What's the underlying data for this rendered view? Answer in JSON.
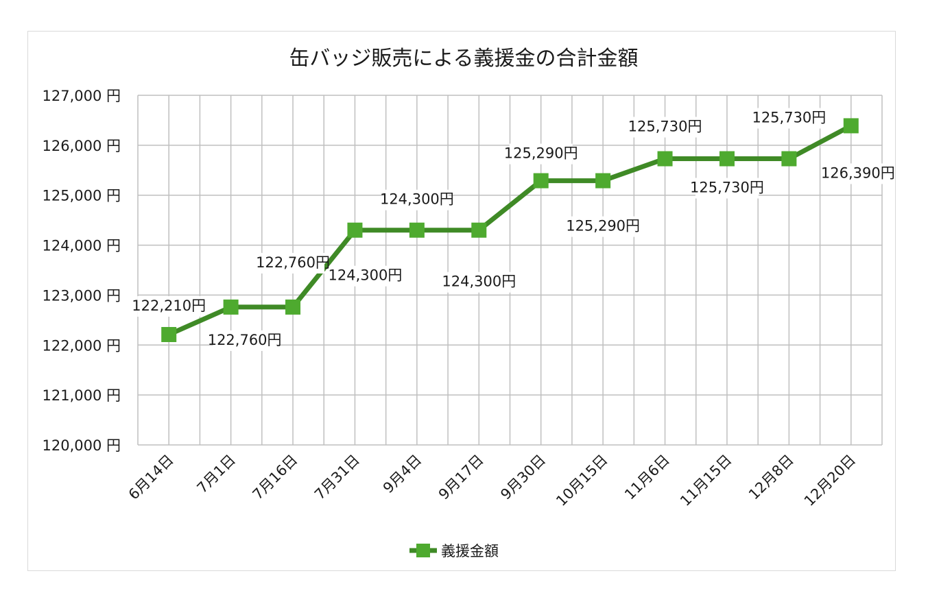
{
  "chart_data": {
    "type": "line",
    "title": "缶バッジ販売による義援金の合計金額",
    "categories": [
      "6月14日",
      "7月1日",
      "7月16日",
      "7月31日",
      "9月4日",
      "9月17日",
      "9月30日",
      "10月15日",
      "11月6日",
      "11月15日",
      "12月8日",
      "12月20日"
    ],
    "series": [
      {
        "name": "義援金額",
        "values": [
          122210,
          122760,
          122760,
          124300,
          124300,
          124300,
          125290,
          125290,
          125730,
          125730,
          125730,
          126390
        ],
        "data_labels": [
          "122,210円",
          "122,760円",
          "122,760円",
          "124,300円",
          "124,300円",
          "124,300円",
          "125,290円",
          "125,290円",
          "125,730円",
          "125,730円",
          "125,730円",
          "126,390円"
        ],
        "color": "#3f8a26",
        "marker_color": "#4eaa2f"
      }
    ],
    "ylim": [
      120000,
      127000
    ],
    "yticks": [
      "120,000 円",
      "121,000 円",
      "122,000 円",
      "123,000 円",
      "124,000 円",
      "125,000 円",
      "126,000 円",
      "127,000 円"
    ],
    "grid": true,
    "legend_position": "bottom",
    "grid_color": "#bfbfbf"
  }
}
